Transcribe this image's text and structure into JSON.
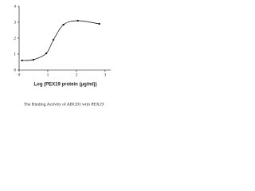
{
  "chart_data": {
    "type": "line",
    "caption": "The Binding Activity of ABCD1 with PEX19",
    "x_label": "Log (PEX19 protein (μg/ml))",
    "x": [
      0.1,
      0.5,
      0.95,
      1.2,
      1.55,
      2.05,
      2.8
    ],
    "values": [
      0.6,
      0.65,
      1.05,
      1.9,
      2.85,
      3.1,
      2.9
    ],
    "color": "#000000",
    "xlim": [
      0,
      3.2
    ],
    "xticks": [
      0,
      1,
      2,
      3
    ],
    "ylim": [
      0,
      4
    ],
    "yticks": [
      0,
      1,
      2,
      3,
      4
    ]
  }
}
